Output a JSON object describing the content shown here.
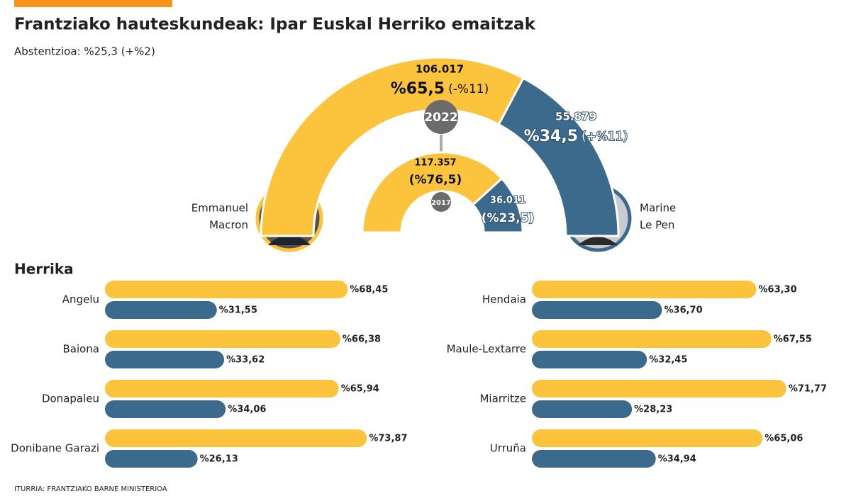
{
  "title": "Frantziako hauteskundeak: Ipar Euskal Herriko emaitzak",
  "subtitle": "Abstentzioa: %25,3 (+%2)",
  "candidates": [
    [
      "Emmanuel",
      "Macron"
    ],
    [
      "Marine",
      "Le Pen"
    ]
  ],
  "section_title": "Herrika",
  "source": "ITURRIA: FRANTZIAKO BARNE MINISTERIOA",
  "chart_data": [
    {
      "type": "pie",
      "title": "2022",
      "values": [
        65.5,
        34.5
      ],
      "value_labels": [
        "%65,5",
        "%34,5"
      ],
      "vote_labels": [
        "106.017",
        "55.879"
      ],
      "changes": [
        "(-%11)",
        "(+%11)"
      ],
      "colors": [
        "#fcc43d",
        "#3b6a8c"
      ]
    },
    {
      "type": "pie",
      "title": "2017",
      "values": [
        76.5,
        23.5
      ],
      "value_labels": [
        "(%76,5)",
        "(%23,5)"
      ],
      "vote_labels": [
        "117.357",
        "36.011"
      ],
      "colors": [
        "#fcc43d",
        "#3b6a8c"
      ]
    },
    {
      "type": "bar",
      "orientation": "horizontal",
      "xlim": [
        0,
        100
      ],
      "categories": [
        "Angelu",
        "Baiona",
        "Donapaleu",
        "Donibane Garazi"
      ],
      "series": [
        {
          "color": "#fcc43d",
          "values": [
            68.45,
            66.38,
            65.94,
            73.87
          ],
          "value_labels": [
            "%68,45",
            "%66,38",
            "%65,94",
            "%73,87"
          ]
        },
        {
          "color": "#3b6a8c",
          "values": [
            31.55,
            33.62,
            34.06,
            26.13
          ],
          "value_labels": [
            "%31,55",
            "%33,62",
            "%34,06",
            "%26,13"
          ]
        }
      ]
    },
    {
      "type": "bar",
      "orientation": "horizontal",
      "xlim": [
        0,
        100
      ],
      "categories": [
        "Hendaia",
        "Maule-Lextarre",
        "Miarritze",
        "Urruña"
      ],
      "series": [
        {
          "color": "#fcc43d",
          "values": [
            63.3,
            67.55,
            71.77,
            65.06
          ],
          "value_labels": [
            "%63,30",
            "%67,55",
            "%71,77",
            "%65,06"
          ]
        },
        {
          "color": "#3b6a8c",
          "values": [
            36.7,
            32.45,
            28.23,
            34.94
          ],
          "value_labels": [
            "%36,70",
            "%32,45",
            "%28,23",
            "%34,94"
          ]
        }
      ]
    }
  ]
}
